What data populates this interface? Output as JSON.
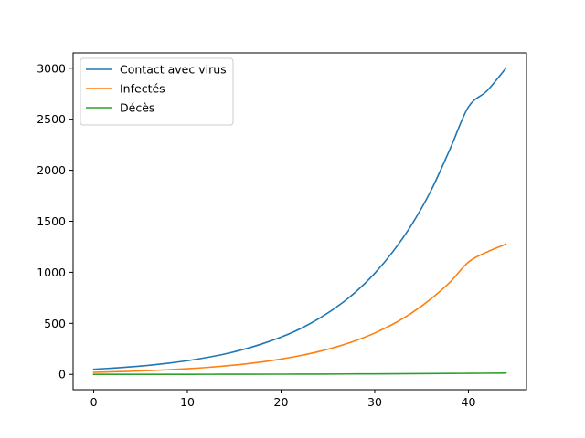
{
  "chart_data": {
    "type": "line",
    "title": "",
    "xlabel": "",
    "ylabel": "",
    "xlim": [
      -2.2,
      46.2
    ],
    "ylim": [
      -150,
      3150
    ],
    "xticks": [
      0,
      10,
      20,
      30,
      40
    ],
    "yticks": [
      0,
      500,
      1000,
      1500,
      2000,
      2500,
      3000
    ],
    "grid": false,
    "legend_position": "top-left",
    "series": [
      {
        "name": "Contact avec virus",
        "color": "#1f77b4",
        "x": [
          0,
          2,
          4,
          6,
          8,
          10,
          12,
          14,
          16,
          18,
          20,
          22,
          24,
          26,
          28,
          30,
          32,
          34,
          36,
          38,
          40,
          42,
          44
        ],
        "y": [
          50,
          61,
          74,
          90,
          110,
          134,
          164,
          200,
          245,
          300,
          365,
          445,
          545,
          665,
          810,
          990,
          1210,
          1475,
          1800,
          2200,
          2620,
          2780,
          3000
        ]
      },
      {
        "name": "Infectés",
        "color": "#ff7f0e",
        "x": [
          0,
          2,
          4,
          6,
          8,
          10,
          12,
          14,
          16,
          18,
          20,
          22,
          24,
          26,
          28,
          30,
          32,
          34,
          36,
          38,
          40,
          42,
          44
        ],
        "y": [
          20,
          25,
          30,
          37,
          45,
          55,
          67,
          82,
          100,
          122,
          150,
          183,
          223,
          272,
          332,
          405,
          495,
          605,
          740,
          900,
          1100,
          1200,
          1275
        ]
      },
      {
        "name": "Décès",
        "color": "#2ca02c",
        "x": [
          0,
          4,
          8,
          12,
          16,
          20,
          24,
          28,
          32,
          36,
          40,
          44
        ],
        "y": [
          0,
          0.3,
          0.6,
          1,
          1.5,
          2,
          3,
          4.5,
          6,
          8,
          10,
          13
        ]
      }
    ]
  }
}
